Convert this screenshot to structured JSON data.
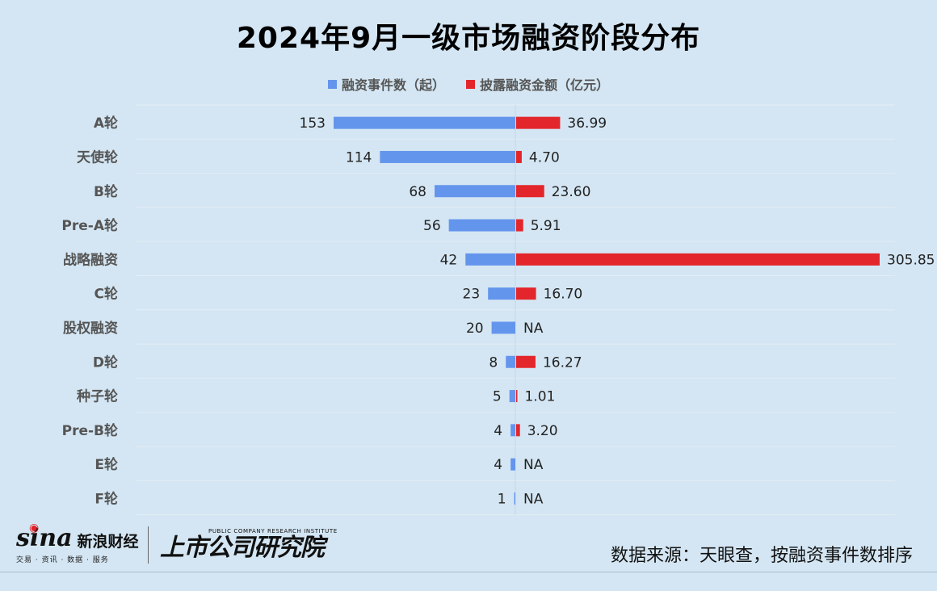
{
  "title": "2024年9月一级市场融资阶段分布",
  "legend": {
    "count_label": "融资事件数（起）",
    "amount_label": "披露融资金额（亿元）"
  },
  "colors": {
    "count": "#6495ed",
    "amount": "#e3262b",
    "background": "#d4e6f3"
  },
  "chart_data": {
    "type": "bar",
    "orientation": "horizontal-diverging",
    "categories": [
      "A轮",
      "天使轮",
      "B轮",
      "Pre-A轮",
      "战略融资",
      "C轮",
      "股权融资",
      "D轮",
      "种子轮",
      "Pre-B轮",
      "E轮",
      "F轮"
    ],
    "series": [
      {
        "name": "融资事件数（起）",
        "values": [
          153,
          114,
          68,
          56,
          42,
          23,
          20,
          8,
          5,
          4,
          4,
          1
        ],
        "labels": [
          "153",
          "114",
          "68",
          "56",
          "42",
          "23",
          "20",
          "8",
          "5",
          "4",
          "4",
          "1"
        ]
      },
      {
        "name": "披露融资金额（亿元）",
        "values": [
          36.99,
          4.7,
          23.6,
          5.91,
          305.85,
          16.7,
          null,
          16.27,
          1.01,
          3.2,
          null,
          null
        ],
        "labels": [
          "36.99",
          "4.70",
          "23.60",
          "5.91",
          "305.85",
          "16.70",
          "NA",
          "16.27",
          "1.01",
          "3.20",
          "NA",
          "NA"
        ]
      }
    ],
    "legend_position": "top-center",
    "grid": true
  },
  "footer": {
    "source": "数据来源：天眼查，按融资事件数排序",
    "sina_logo_text": "sina",
    "sina_cn": "新浪财经",
    "sina_sub": "交易 · 资讯 · 数据 · 服务",
    "pcri_en": "PUBLIC COMPANY RESEARCH INSTITUTE",
    "pcri_cn": "上市公司研究院"
  }
}
